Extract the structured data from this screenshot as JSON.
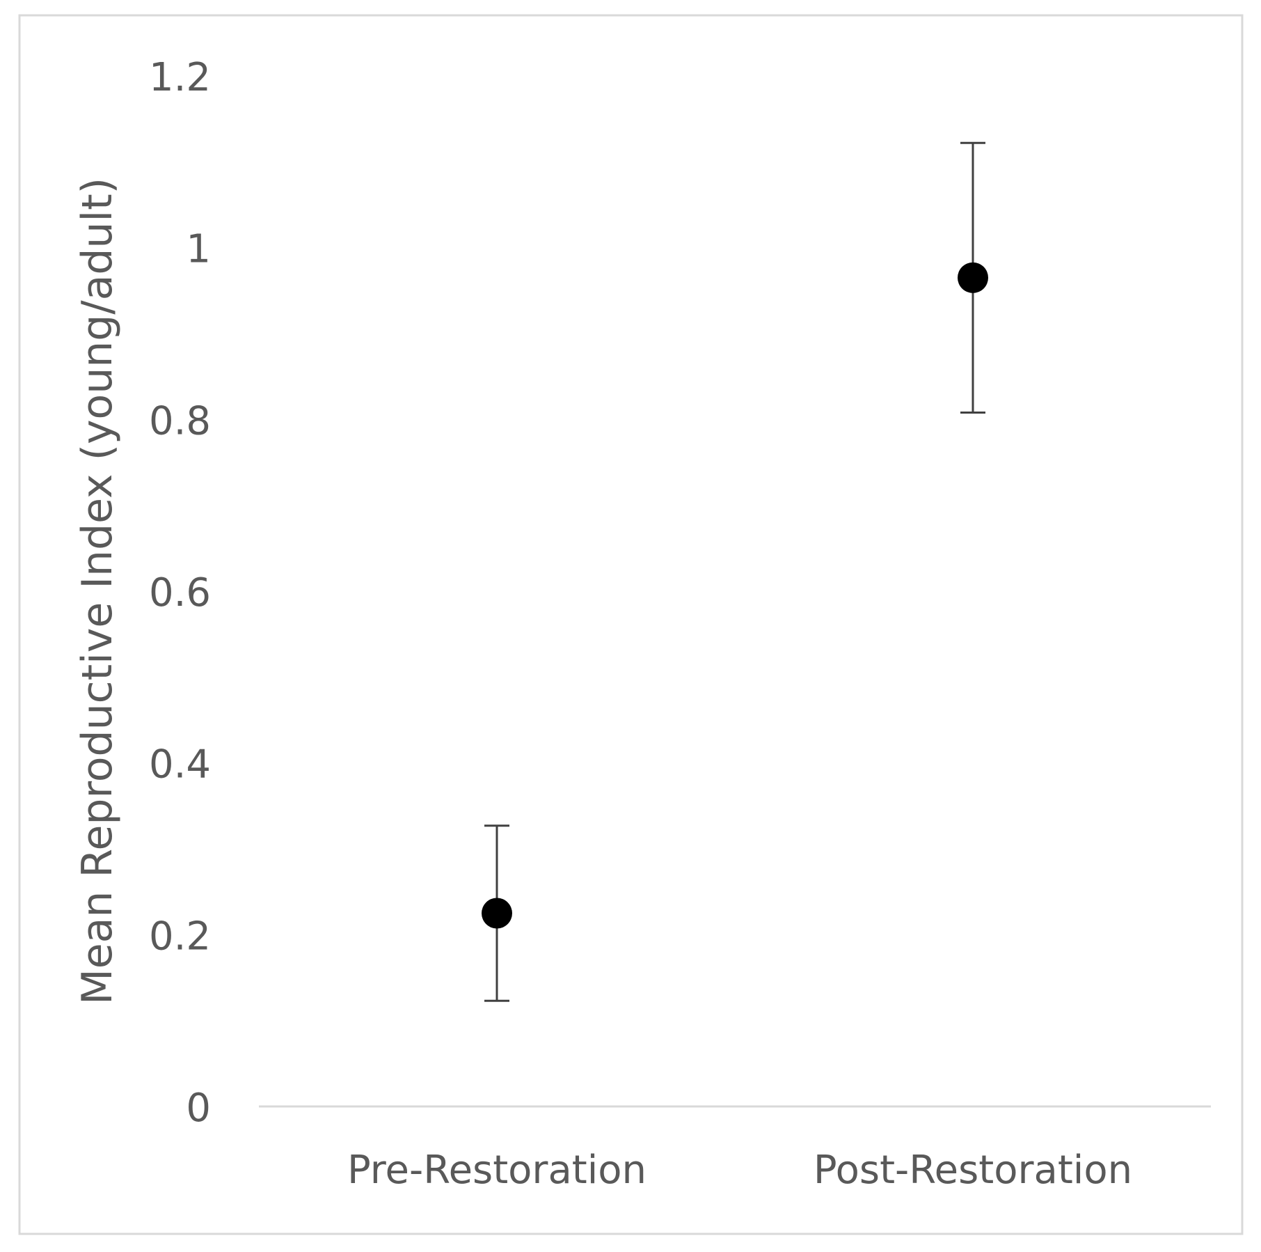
{
  "chart_data": {
    "type": "scatter",
    "title": "",
    "xlabel": "",
    "ylabel": "Mean Reproductive Index (young/adult)",
    "categories": [
      "Pre-Restoration",
      "Post-Restoration"
    ],
    "series": [
      {
        "values": [
          0.225,
          0.965
        ],
        "error_low": [
          0.123,
          0.808
        ],
        "error_high": [
          0.327,
          1.122
        ],
        "marker": "circle",
        "color": "#000000"
      }
    ],
    "ylim": [
      0,
      1.2
    ],
    "yticks": [
      "0",
      "0.2",
      "0.4",
      "0.6",
      "0.8",
      "1",
      "1.2"
    ],
    "grid": false,
    "legend": "none",
    "colors": {
      "axis": "#d9d9d9",
      "text": "#595959",
      "error_bar": "#404040",
      "border": "#d9d9d9"
    }
  }
}
